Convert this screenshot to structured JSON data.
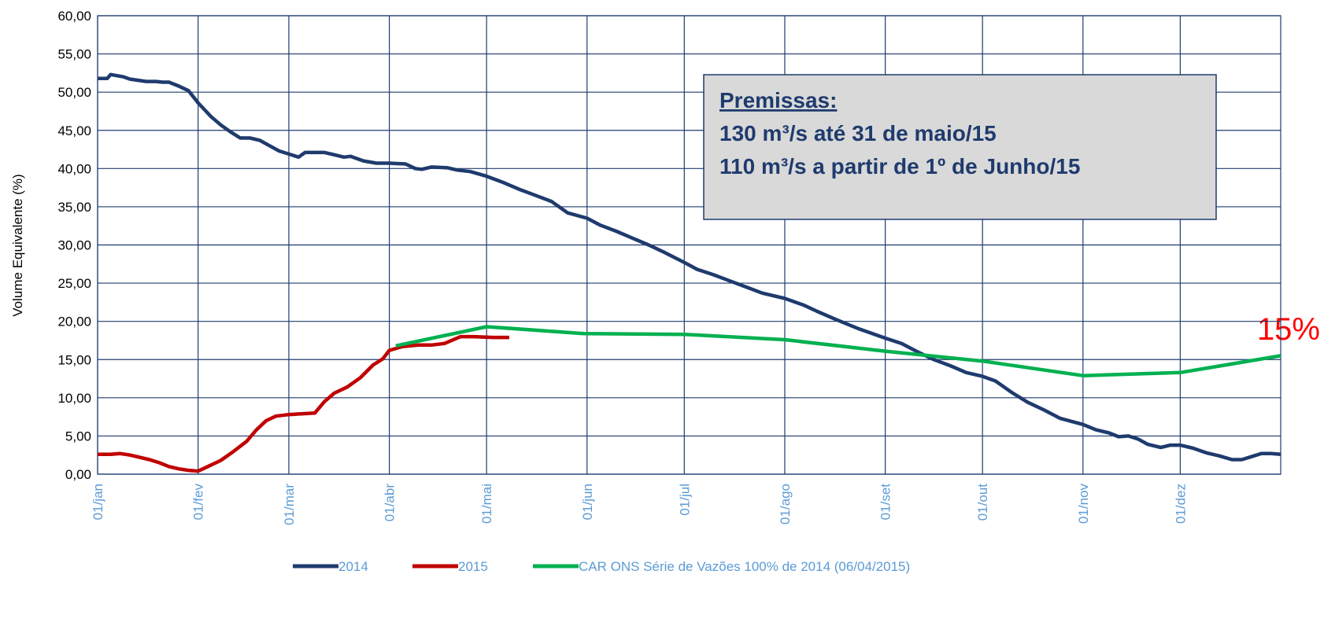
{
  "chart_data": {
    "type": "line",
    "y_label": "Volume Equivalente (%)",
    "annotation": "15%",
    "box": {
      "title": "Premissas:",
      "lines": [
        "130 m³/s até 31 de maio/15",
        "110 m³/s a partir de 1º de Junho/15"
      ]
    },
    "xlim": [
      0,
      365
    ],
    "xticks": [
      {
        "value": 0,
        "label": "01/jan"
      },
      {
        "value": 31,
        "label": "01/fev"
      },
      {
        "value": 59,
        "label": "01/mar"
      },
      {
        "value": 90,
        "label": "01/abr"
      },
      {
        "value": 120,
        "label": "01/mai"
      },
      {
        "value": 151,
        "label": "01/jun"
      },
      {
        "value": 181,
        "label": "01/jul"
      },
      {
        "value": 212,
        "label": "01/ago"
      },
      {
        "value": 243,
        "label": "01/set"
      },
      {
        "value": 273,
        "label": "01/out"
      },
      {
        "value": 304,
        "label": "01/nov"
      },
      {
        "value": 334,
        "label": "01/dez"
      }
    ],
    "ylim": [
      0,
      60
    ],
    "yticks": [
      {
        "value": 0,
        "label": "0,00"
      },
      {
        "value": 5,
        "label": "5,00"
      },
      {
        "value": 10,
        "label": "10,00"
      },
      {
        "value": 15,
        "label": "15,00"
      },
      {
        "value": 20,
        "label": "20,00"
      },
      {
        "value": 25,
        "label": "25,00"
      },
      {
        "value": 30,
        "label": "30,00"
      },
      {
        "value": 35,
        "label": "35,00"
      },
      {
        "value": 40,
        "label": "40,00"
      },
      {
        "value": 45,
        "label": "45,00"
      },
      {
        "value": 50,
        "label": "50,00"
      },
      {
        "value": 55,
        "label": "55,00"
      },
      {
        "value": 60,
        "label": "60,00"
      }
    ],
    "grid": true,
    "series": [
      {
        "name": "2014",
        "color": "#1f3b6e",
        "x": [
          0,
          3,
          4,
          8,
          10,
          15,
          18,
          20,
          22,
          25,
          28,
          31,
          35,
          38,
          41,
          44,
          47,
          50,
          53,
          56,
          59,
          62,
          64,
          67,
          70,
          73,
          76,
          78,
          82,
          86,
          90,
          95,
          98,
          100,
          103,
          108,
          111,
          115,
          120,
          125,
          130,
          135,
          140,
          145,
          151,
          155,
          160,
          165,
          170,
          175,
          181,
          185,
          190,
          195,
          200,
          205,
          212,
          218,
          222,
          228,
          235,
          243,
          248,
          253,
          258,
          263,
          268,
          273,
          277,
          282,
          287,
          292,
          297,
          304,
          308,
          312,
          315,
          318,
          321,
          324,
          328,
          331,
          334,
          338,
          342,
          346,
          350,
          353,
          356,
          359,
          362,
          365
        ],
        "values": [
          51.8,
          51.8,
          52.3,
          52.0,
          51.7,
          51.4,
          51.4,
          51.3,
          51.3,
          50.8,
          50.2,
          48.6,
          46.8,
          45.7,
          44.8,
          44.0,
          44.0,
          43.7,
          43.0,
          42.3,
          41.9,
          41.5,
          42.1,
          42.1,
          42.1,
          41.8,
          41.5,
          41.6,
          41.0,
          40.7,
          40.7,
          40.6,
          40.0,
          39.9,
          40.2,
          40.1,
          39.8,
          39.6,
          39.0,
          38.2,
          37.3,
          36.5,
          35.7,
          34.2,
          33.5,
          32.6,
          31.8,
          30.9,
          30.0,
          29.0,
          27.7,
          26.8,
          26.1,
          25.3,
          24.5,
          23.7,
          23.0,
          22.1,
          21.3,
          20.2,
          19.0,
          17.8,
          17.1,
          16.0,
          15.0,
          14.2,
          13.3,
          12.8,
          12.2,
          10.7,
          9.4,
          8.4,
          7.3,
          6.5,
          5.8,
          5.4,
          4.9,
          5.0,
          4.6,
          3.9,
          3.5,
          3.8,
          3.8,
          3.4,
          2.8,
          2.4,
          1.9,
          1.9,
          2.3,
          2.7,
          2.7,
          2.6
        ]
      },
      {
        "name": "2015",
        "color": "#c00000",
        "x": [
          0,
          4,
          7,
          10,
          13,
          16,
          19,
          22,
          25,
          28,
          31,
          34,
          38,
          42,
          46,
          49,
          52,
          55,
          59,
          63,
          67,
          70,
          73,
          77,
          81,
          85,
          88,
          90,
          94,
          99,
          103,
          107,
          112,
          116,
          122,
          127
        ],
        "values": [
          2.6,
          2.6,
          2.7,
          2.5,
          2.2,
          1.9,
          1.5,
          1.0,
          0.7,
          0.5,
          0.4,
          1.0,
          1.8,
          3.0,
          4.3,
          5.8,
          7.0,
          7.6,
          7.8,
          7.9,
          8.0,
          9.5,
          10.6,
          11.4,
          12.6,
          14.3,
          15.1,
          16.2,
          16.7,
          16.9,
          16.9,
          17.1,
          18.0,
          18.0,
          17.9,
          17.9
        ]
      },
      {
        "name": "CAR ONS Série de Vazões 100% de 2014  (06/04/2015)",
        "color": "#00b050",
        "x": [
          92,
          120,
          150,
          181,
          212,
          243,
          273,
          304,
          334,
          365
        ],
        "values": [
          16.8,
          19.3,
          18.4,
          18.3,
          17.6,
          16.1,
          14.8,
          12.9,
          13.3,
          15.5
        ]
      }
    ]
  }
}
